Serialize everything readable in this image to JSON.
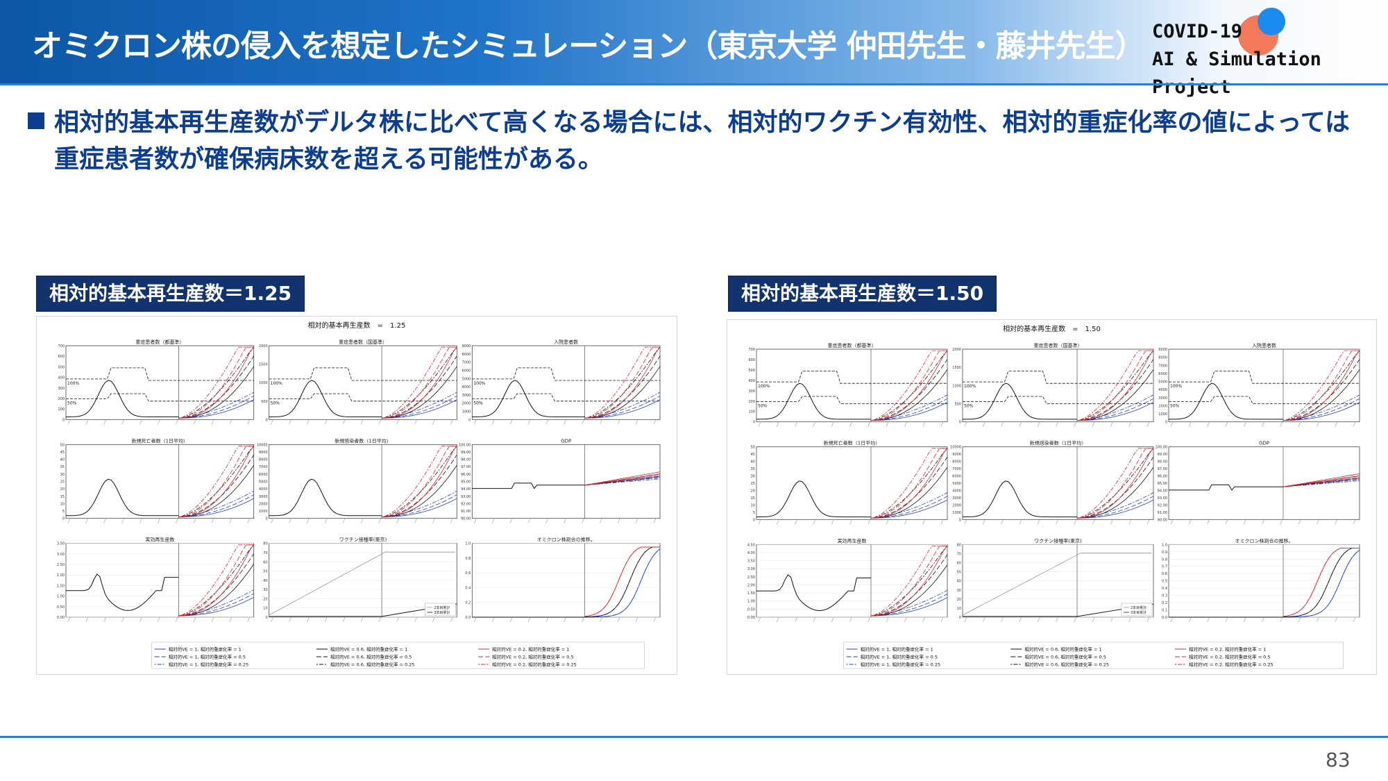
{
  "header": {
    "title": "オミクロン株の侵入を想定したシミュレーション（東京大学 仲田先生・藤井先生）",
    "brand_line1": "COVID-19",
    "brand_line2": "AI & Simulation Project"
  },
  "bullet": {
    "text": "相対的基本再生産数がデルタ株に比べて高くなる場合には、相対的ワクチン有効性、相対的重症化率の値によっては重症患者数が確保病床数を超える可能性がある。"
  },
  "colors": {
    "accent": "#0b3d91",
    "label_bg": "#12346e",
    "blue": "#1f3fd6",
    "red": "#e8202a",
    "black": "#111111"
  },
  "figures": [
    {
      "param_label": "相対的基本再生産数＝1.25",
      "suptitle": "相対的基本再生産数　=　1.25",
      "panels": [
        {
          "title": "重症患者数（都基準）",
          "yticks": [
            "700",
            "600",
            "500",
            "400",
            "300",
            "200",
            "100",
            "0"
          ],
          "pct_hi": "100%",
          "pct_lo": "50%"
        },
        {
          "title": "重症患者数（国基準）",
          "yticks": [
            "2000",
            "1500",
            "1000",
            "500",
            "0"
          ],
          "pct_hi": "100%",
          "pct_lo": "50%"
        },
        {
          "title": "入院患者数",
          "yticks": [
            "9000",
            "8000",
            "7000",
            "6000",
            "5000",
            "4000",
            "3000",
            "2000",
            "1000",
            "0"
          ],
          "pct_hi": "100%",
          "pct_lo": "50%"
        },
        {
          "title": "新規死亡者数（1日平均）",
          "yticks": [
            "50",
            "45",
            "40",
            "35",
            "30",
            "25",
            "20",
            "15",
            "10",
            "5",
            "0"
          ]
        },
        {
          "title": "新規感染者数（1日平均）",
          "yticks": [
            "10000",
            "9000",
            "8000",
            "7000",
            "6000",
            "5000",
            "4000",
            "3000",
            "2000",
            "1000",
            "0"
          ]
        },
        {
          "title": "GDP",
          "yticks": [
            "100.00",
            "99.00",
            "98.00",
            "97.00",
            "96.00",
            "95.00",
            "94.00",
            "93.00",
            "92.00",
            "91.00",
            "90.00"
          ]
        },
        {
          "title": "実効再生産数",
          "yticks": [
            "3.50",
            "3.00",
            "2.50",
            "2.00",
            "1.50",
            "1.00",
            "0.50",
            "0.00"
          ]
        },
        {
          "title": "ワクチン接種率(東京)",
          "yticks": [
            "80",
            "70",
            "60",
            "50",
            "40",
            "30",
            "20",
            "10",
            "0"
          ],
          "legend": [
            "2本目累計",
            "3本目累計"
          ]
        },
        {
          "title": "オミクロン株割合の推移。",
          "yticks": [
            "1.0",
            "0.8",
            "0.6",
            "0.4",
            "0.2",
            "0.0"
          ]
        }
      ],
      "legend": [
        "相対的VE = 1, 相対的重症化率 = 1",
        "相対的VE = 0.6, 相対的重症化率 = 1",
        "相対的VE = 0.2, 相対的重症化率 = 1",
        "相対的VE = 1, 相対的重症化率 = 0.5",
        "相対的VE = 0.6, 相対的重症化率 = 0.5",
        "相対的VE = 0.2, 相対的重症化率 = 0.5",
        "相対的VE = 1, 相対的重症化率 = 0.25",
        "相対的VE = 0.6, 相対的重症化率 = 0.25",
        "相対的VE = 0.2, 相対的重症化率 = 0.25"
      ]
    },
    {
      "param_label": "相対的基本再生産数＝1.50",
      "suptitle": "相対的基本再生産数　=　1.50",
      "panels": [
        {
          "title": "重症患者数（都基準）",
          "yticks": [
            "700",
            "600",
            "500",
            "400",
            "300",
            "200",
            "100",
            "0"
          ],
          "pct_hi": "100%",
          "pct_lo": "50%"
        },
        {
          "title": "重症患者数（国基準）",
          "yticks": [
            "2000",
            "1500",
            "1000",
            "500",
            "0"
          ],
          "pct_hi": "100%",
          "pct_lo": "50%"
        },
        {
          "title": "入院患者数",
          "yticks": [
            "9000",
            "8000",
            "7000",
            "6000",
            "5000",
            "4000",
            "3000",
            "2000",
            "1000",
            "0"
          ],
          "pct_hi": "100%",
          "pct_lo": "50%"
        },
        {
          "title": "新規死亡者数（1日平均）",
          "yticks": [
            "50",
            "45",
            "40",
            "35",
            "30",
            "25",
            "20",
            "15",
            "10",
            "5",
            "0"
          ]
        },
        {
          "title": "新規感染者数（1日平均）",
          "yticks": [
            "10000",
            "9000",
            "8000",
            "7000",
            "6000",
            "5000",
            "4000",
            "3000",
            "2000",
            "1000",
            "0"
          ]
        },
        {
          "title": "GDP",
          "yticks": [
            "100.00",
            "99.00",
            "98.00",
            "97.00",
            "96.00",
            "95.00",
            "94.00",
            "93.00",
            "92.00",
            "91.00",
            "90.00"
          ]
        },
        {
          "title": "実効再生産数",
          "yticks": [
            "4.50",
            "4.00",
            "3.50",
            "3.00",
            "2.50",
            "2.00",
            "1.50",
            "1.00",
            "0.50",
            "0.00"
          ]
        },
        {
          "title": "ワクチン接種率(東京)",
          "yticks": [
            "80",
            "70",
            "60",
            "50",
            "40",
            "30",
            "20",
            "10",
            "0"
          ],
          "legend": [
            "2本目累計",
            "3本目累計"
          ]
        },
        {
          "title": "オミクロン株割合の推移。",
          "yticks": [
            "1.0",
            "0.9",
            "0.8",
            "0.7",
            "0.6",
            "0.5",
            "0.4",
            "0.3",
            "0.2",
            "0.1",
            "0.0"
          ]
        }
      ],
      "legend": [
        "相対的VE = 1, 相対的重症化率 = 1",
        "相対的VE = 0.6, 相対的重症化率 = 1",
        "相対的VE = 0.2, 相対的重症化率 = 1",
        "相対的VE = 1, 相対的重症化率 = 0.5",
        "相対的VE = 0.6, 相対的重症化率 = 0.5",
        "相対的VE = 0.2, 相対的重症化率 = 0.5",
        "相対的VE = 1, 相対的重症化率 = 0.25",
        "相対的VE = 0.6, 相対的重症化率 = 0.25",
        "相対的VE = 0.2, 相対的重症化率 = 0.25"
      ]
    }
  ],
  "page_number": "83"
}
